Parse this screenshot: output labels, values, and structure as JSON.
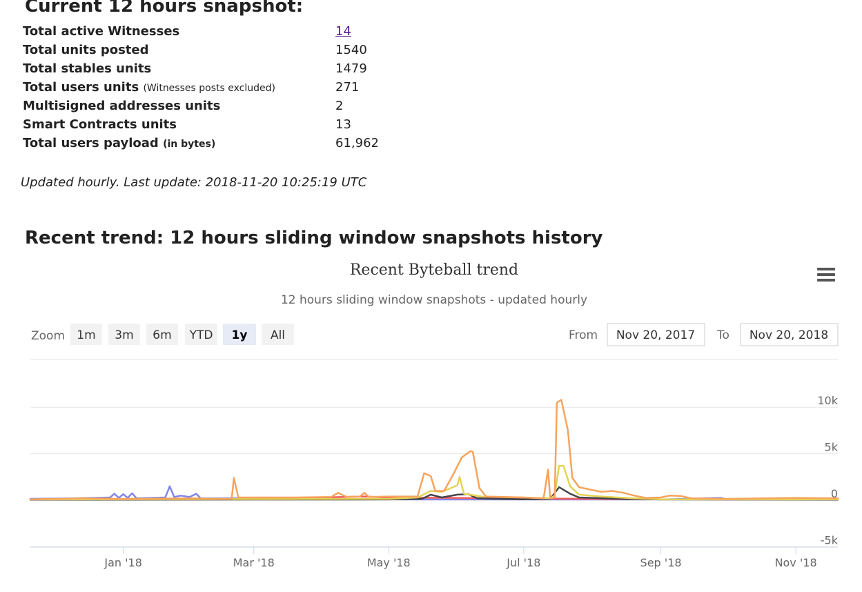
{
  "snapshot": {
    "title": "Current 12 hours snapshot:",
    "rows": [
      {
        "label": "Total active Witnesses",
        "note": "",
        "value": "14",
        "link": true
      },
      {
        "label": "Total units posted",
        "note": "",
        "value": "1540",
        "link": false
      },
      {
        "label": "Total stables units",
        "note": "",
        "value": "1479",
        "link": false
      },
      {
        "label": "Total users units",
        "note": "(Witnesses posts excluded)",
        "value": "271",
        "link": false
      },
      {
        "label": "Multisigned addresses units",
        "note": "",
        "value": "2",
        "link": false
      },
      {
        "label": "Smart Contracts units",
        "note": "",
        "value": "13",
        "link": false
      },
      {
        "label": "Total users payload",
        "note": "(in bytes)",
        "value": "61,962",
        "link": false
      }
    ],
    "updated": "Updated hourly. Last update: 2018-11-20 10:25:19 UTC"
  },
  "trend": {
    "heading": "Recent trend: 12 hours sliding window snapshots history",
    "zoom_label": "Zoom",
    "zoom_buttons": [
      "1m",
      "3m",
      "6m",
      "YTD",
      "1y",
      "All"
    ],
    "zoom_selected": "1y",
    "from_label": "From",
    "from_value": "Nov 20, 2017",
    "to_label": "To",
    "to_value": "Nov 20, 2018",
    "menu_icon": "hamburger-menu-icon"
  },
  "chart_data": {
    "type": "line",
    "title": "Recent Byteball trend",
    "subtitle": "12 hours sliding window snapshots - updated hourly",
    "x_tick_labels": [
      "Jan '18",
      "Mar '18",
      "May '18",
      "Jul '18",
      "Sep '18",
      "Nov '18"
    ],
    "x_tick_dates": [
      "2018-01-01",
      "2018-03-01",
      "2018-05-01",
      "2018-07-01",
      "2018-09-01",
      "2018-11-01"
    ],
    "xlim": [
      "2017-11-20",
      "2018-11-20"
    ],
    "y_tick_labels": [
      "10k",
      "5k",
      "0",
      "-5k"
    ],
    "ylim": [
      -5000,
      15000
    ],
    "grid": true,
    "series": [
      {
        "color": "#8085e9",
        "points": [
          [
            "2017-11-20",
            150
          ],
          [
            "2017-12-10",
            200
          ],
          [
            "2017-12-26",
            300
          ],
          [
            "2017-12-28",
            700
          ],
          [
            "2017-12-30",
            250
          ],
          [
            "2018-01-01",
            650
          ],
          [
            "2018-01-03",
            250
          ],
          [
            "2018-01-05",
            750
          ],
          [
            "2018-01-07",
            200
          ],
          [
            "2018-01-20",
            300
          ],
          [
            "2018-01-22",
            1500
          ],
          [
            "2018-01-24",
            350
          ],
          [
            "2018-01-27",
            500
          ],
          [
            "2018-01-31",
            350
          ],
          [
            "2018-02-03",
            700
          ],
          [
            "2018-02-05",
            200
          ],
          [
            "2018-03-01",
            200
          ],
          [
            "2018-04-01",
            150
          ],
          [
            "2018-05-01",
            100
          ],
          [
            "2018-06-01",
            80
          ],
          [
            "2018-07-01",
            80
          ],
          [
            "2018-08-01",
            80
          ],
          [
            "2018-09-01",
            80
          ],
          [
            "2018-09-28",
            250
          ],
          [
            "2018-10-01",
            80
          ],
          [
            "2018-11-20",
            100
          ]
        ]
      },
      {
        "color": "#f45b5b",
        "points": [
          [
            "2017-11-20",
            100
          ],
          [
            "2018-02-01",
            100
          ],
          [
            "2018-03-01",
            120
          ],
          [
            "2018-03-20",
            250
          ],
          [
            "2018-04-01",
            300
          ],
          [
            "2018-04-20",
            400
          ],
          [
            "2018-05-01",
            300
          ],
          [
            "2018-06-01",
            250
          ],
          [
            "2018-07-01",
            200
          ],
          [
            "2018-08-01",
            150
          ],
          [
            "2018-09-01",
            100
          ],
          [
            "2018-11-20",
            100
          ]
        ]
      },
      {
        "color": "#434348",
        "points": [
          [
            "2017-11-20",
            50
          ],
          [
            "2018-05-01",
            80
          ],
          [
            "2018-05-16",
            150
          ],
          [
            "2018-05-20",
            600
          ],
          [
            "2018-05-25",
            300
          ],
          [
            "2018-06-01",
            600
          ],
          [
            "2018-06-06",
            650
          ],
          [
            "2018-06-10",
            200
          ],
          [
            "2018-07-01",
            100
          ],
          [
            "2018-07-13",
            150
          ],
          [
            "2018-07-17",
            1400
          ],
          [
            "2018-07-22",
            700
          ],
          [
            "2018-07-26",
            300
          ],
          [
            "2018-08-15",
            150
          ],
          [
            "2018-09-01",
            80
          ],
          [
            "2018-11-20",
            60
          ]
        ]
      },
      {
        "color": "#e4d354",
        "points": [
          [
            "2017-11-20",
            80
          ],
          [
            "2018-05-01",
            150
          ],
          [
            "2018-05-14",
            300
          ],
          [
            "2018-05-20",
            1000
          ],
          [
            "2018-05-25",
            900
          ],
          [
            "2018-06-01",
            1600
          ],
          [
            "2018-06-02",
            2500
          ],
          [
            "2018-06-04",
            700
          ],
          [
            "2018-06-12",
            400
          ],
          [
            "2018-07-01",
            300
          ],
          [
            "2018-07-13",
            200
          ],
          [
            "2018-07-15",
            500
          ],
          [
            "2018-07-17",
            3700
          ],
          [
            "2018-07-19",
            3700
          ],
          [
            "2018-07-22",
            1500
          ],
          [
            "2018-07-26",
            600
          ],
          [
            "2018-08-05",
            400
          ],
          [
            "2018-08-20",
            200
          ],
          [
            "2018-09-01",
            100
          ],
          [
            "2018-11-20",
            100
          ]
        ]
      },
      {
        "color": "#f7a35c",
        "points": [
          [
            "2017-11-20",
            100
          ],
          [
            "2017-12-15",
            200
          ],
          [
            "2018-01-01",
            150
          ],
          [
            "2018-02-01",
            200
          ],
          [
            "2018-02-15",
            150
          ],
          [
            "2018-02-19",
            150
          ],
          [
            "2018-02-20",
            2400
          ],
          [
            "2018-02-22",
            300
          ],
          [
            "2018-03-20",
            300
          ],
          [
            "2018-04-05",
            350
          ],
          [
            "2018-04-08",
            800
          ],
          [
            "2018-04-12",
            350
          ],
          [
            "2018-04-18",
            400
          ],
          [
            "2018-04-20",
            800
          ],
          [
            "2018-04-22",
            350
          ],
          [
            "2018-05-01",
            400
          ],
          [
            "2018-05-14",
            400
          ],
          [
            "2018-05-17",
            2900
          ],
          [
            "2018-05-20",
            2600
          ],
          [
            "2018-05-22",
            1000
          ],
          [
            "2018-05-26",
            1000
          ],
          [
            "2018-05-30",
            2700
          ],
          [
            "2018-06-03",
            4600
          ],
          [
            "2018-06-07",
            5300
          ],
          [
            "2018-06-08",
            5200
          ],
          [
            "2018-06-11",
            1300
          ],
          [
            "2018-06-14",
            400
          ],
          [
            "2018-07-01",
            300
          ],
          [
            "2018-07-10",
            200
          ],
          [
            "2018-07-12",
            3300
          ],
          [
            "2018-07-13",
            200
          ],
          [
            "2018-07-15",
            300
          ],
          [
            "2018-07-16",
            10500
          ],
          [
            "2018-07-18",
            10800
          ],
          [
            "2018-07-21",
            7500
          ],
          [
            "2018-07-23",
            2400
          ],
          [
            "2018-07-26",
            1400
          ],
          [
            "2018-08-05",
            900
          ],
          [
            "2018-08-10",
            1000
          ],
          [
            "2018-08-15",
            800
          ],
          [
            "2018-08-20",
            500
          ],
          [
            "2018-08-25",
            250
          ],
          [
            "2018-09-01",
            300
          ],
          [
            "2018-09-05",
            500
          ],
          [
            "2018-09-10",
            450
          ],
          [
            "2018-09-15",
            200
          ],
          [
            "2018-10-01",
            150
          ],
          [
            "2018-11-01",
            250
          ],
          [
            "2018-11-20",
            200
          ]
        ]
      }
    ]
  }
}
